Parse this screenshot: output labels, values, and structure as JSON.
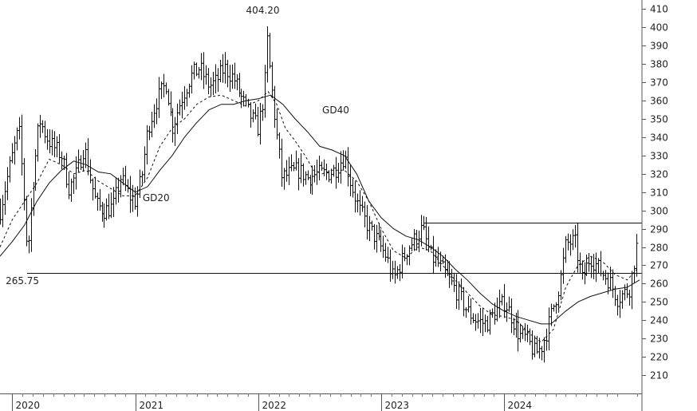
{
  "chart_data": {
    "type": "ohlc-bar",
    "title": "",
    "xlabel": "",
    "ylabel": "",
    "ylim": [
      200,
      415
    ],
    "y_ticks": [
      210,
      220,
      230,
      240,
      250,
      260,
      270,
      280,
      290,
      300,
      310,
      320,
      330,
      340,
      350,
      360,
      370,
      380,
      390,
      400,
      410
    ],
    "x_range": [
      2019.9,
      2025.12
    ],
    "x_ticks": [
      {
        "x": 2020.0,
        "label": "2020"
      },
      {
        "x": 2021.0,
        "label": "2021"
      },
      {
        "x": 2022.0,
        "label": "2022"
      },
      {
        "x": 2023.0,
        "label": "2023"
      },
      {
        "x": 2024.0,
        "label": "2024"
      }
    ],
    "horizontal_lines": [
      {
        "y": 265.75,
        "x_start": 2020.12
      },
      {
        "y": 293.5,
        "x_start": 2023.35
      }
    ],
    "annotations": [
      {
        "text": "404.20",
        "x": 2022.05,
        "y": 404.2
      },
      {
        "text": "265.75",
        "x": 2019.92,
        "y": 265.75
      },
      {
        "text": "GD40",
        "x": 2022.52,
        "y": 353
      },
      {
        "text": "GD20",
        "x": 2021.06,
        "y": 305
      }
    ],
    "price_anchors": [
      [
        2019.9,
        300
      ],
      [
        2019.97,
        322
      ],
      [
        2020.05,
        345
      ],
      [
        2020.09,
        310
      ],
      [
        2020.12,
        275
      ],
      [
        2020.17,
        318
      ],
      [
        2020.22,
        350
      ],
      [
        2020.28,
        340
      ],
      [
        2020.33,
        335
      ],
      [
        2020.4,
        330
      ],
      [
        2020.46,
        312
      ],
      [
        2020.52,
        320
      ],
      [
        2020.58,
        335
      ],
      [
        2020.63,
        318
      ],
      [
        2020.68,
        303
      ],
      [
        2020.75,
        300
      ],
      [
        2020.82,
        302
      ],
      [
        2020.88,
        318
      ],
      [
        2020.95,
        308
      ],
      [
        2021.0,
        305
      ],
      [
        2021.05,
        318
      ],
      [
        2021.1,
        345
      ],
      [
        2021.17,
        360
      ],
      [
        2021.25,
        370
      ],
      [
        2021.3,
        345
      ],
      [
        2021.37,
        360
      ],
      [
        2021.45,
        373
      ],
      [
        2021.52,
        378
      ],
      [
        2021.6,
        368
      ],
      [
        2021.65,
        370
      ],
      [
        2021.72,
        378
      ],
      [
        2021.8,
        372
      ],
      [
        2021.87,
        360
      ],
      [
        2021.95,
        350
      ],
      [
        2022.0,
        345
      ],
      [
        2022.05,
        365
      ],
      [
        2022.07,
        395
      ],
      [
        2022.1,
        372
      ],
      [
        2022.15,
        340
      ],
      [
        2022.19,
        318
      ],
      [
        2022.25,
        320
      ],
      [
        2022.32,
        322
      ],
      [
        2022.4,
        318
      ],
      [
        2022.48,
        320
      ],
      [
        2022.55,
        320
      ],
      [
        2022.62,
        322
      ],
      [
        2022.7,
        330
      ],
      [
        2022.75,
        315
      ],
      [
        2022.82,
        300
      ],
      [
        2022.9,
        290
      ],
      [
        2022.97,
        283
      ],
      [
        2023.04,
        275
      ],
      [
        2023.1,
        262
      ],
      [
        2023.15,
        270
      ],
      [
        2023.22,
        280
      ],
      [
        2023.28,
        285
      ],
      [
        2023.33,
        290
      ],
      [
        2023.4,
        275
      ],
      [
        2023.47,
        270
      ],
      [
        2023.55,
        262
      ],
      [
        2023.62,
        255
      ],
      [
        2023.7,
        245
      ],
      [
        2023.77,
        240
      ],
      [
        2023.85,
        238
      ],
      [
        2023.93,
        245
      ],
      [
        2024.0,
        250
      ],
      [
        2024.05,
        243
      ],
      [
        2024.12,
        232
      ],
      [
        2024.18,
        230
      ],
      [
        2024.25,
        222
      ],
      [
        2024.3,
        225
      ],
      [
        2024.35,
        235
      ],
      [
        2024.4,
        248
      ],
      [
        2024.45,
        260
      ],
      [
        2024.5,
        282
      ],
      [
        2024.57,
        283
      ],
      [
        2024.63,
        262
      ],
      [
        2024.7,
        275
      ],
      [
        2024.77,
        268
      ],
      [
        2024.85,
        262
      ],
      [
        2024.92,
        252
      ],
      [
        2024.98,
        255
      ],
      [
        2025.02,
        258
      ],
      [
        2025.06,
        275
      ],
      [
        2025.09,
        287
      ]
    ],
    "moving_averages": [
      {
        "name": "GD20",
        "style": "dashed",
        "points": [
          [
            2019.9,
            280
          ],
          [
            2020.0,
            295
          ],
          [
            2020.1,
            305
          ],
          [
            2020.2,
            315
          ],
          [
            2020.3,
            328
          ],
          [
            2020.4,
            325
          ],
          [
            2020.5,
            320
          ],
          [
            2020.6,
            322
          ],
          [
            2020.7,
            316
          ],
          [
            2020.8,
            312
          ],
          [
            2020.9,
            308
          ],
          [
            2021.0,
            308
          ],
          [
            2021.1,
            318
          ],
          [
            2021.2,
            335
          ],
          [
            2021.3,
            345
          ],
          [
            2021.4,
            350
          ],
          [
            2021.5,
            358
          ],
          [
            2021.6,
            362
          ],
          [
            2021.7,
            363
          ],
          [
            2021.8,
            360
          ],
          [
            2021.9,
            357
          ],
          [
            2022.0,
            360
          ],
          [
            2022.08,
            365
          ],
          [
            2022.15,
            358
          ],
          [
            2022.22,
            345
          ],
          [
            2022.3,
            338
          ],
          [
            2022.38,
            330
          ],
          [
            2022.45,
            322
          ],
          [
            2022.52,
            320
          ],
          [
            2022.6,
            322
          ],
          [
            2022.7,
            322
          ],
          [
            2022.8,
            316
          ],
          [
            2022.9,
            305
          ],
          [
            2023.0,
            290
          ],
          [
            2023.1,
            278
          ],
          [
            2023.2,
            274
          ],
          [
            2023.3,
            280
          ],
          [
            2023.4,
            278
          ],
          [
            2023.5,
            270
          ],
          [
            2023.6,
            262
          ],
          [
            2023.7,
            255
          ],
          [
            2023.8,
            248
          ],
          [
            2023.9,
            243
          ],
          [
            2024.0,
            242
          ],
          [
            2024.1,
            240
          ],
          [
            2024.2,
            233
          ],
          [
            2024.3,
            228
          ],
          [
            2024.4,
            235
          ],
          [
            2024.5,
            258
          ],
          [
            2024.6,
            270
          ],
          [
            2024.7,
            275
          ],
          [
            2024.8,
            272
          ],
          [
            2024.9,
            265
          ],
          [
            2025.0,
            262
          ],
          [
            2025.08,
            268
          ]
        ]
      },
      {
        "name": "GD40",
        "style": "solid",
        "points": [
          [
            2019.9,
            275
          ],
          [
            2020.0,
            283
          ],
          [
            2020.1,
            292
          ],
          [
            2020.2,
            305
          ],
          [
            2020.3,
            315
          ],
          [
            2020.4,
            322
          ],
          [
            2020.5,
            327
          ],
          [
            2020.6,
            325
          ],
          [
            2020.7,
            321
          ],
          [
            2020.8,
            320
          ],
          [
            2020.9,
            315
          ],
          [
            2021.0,
            310
          ],
          [
            2021.1,
            313
          ],
          [
            2021.2,
            322
          ],
          [
            2021.3,
            330
          ],
          [
            2021.4,
            340
          ],
          [
            2021.5,
            348
          ],
          [
            2021.6,
            355
          ],
          [
            2021.7,
            358
          ],
          [
            2021.8,
            358
          ],
          [
            2021.9,
            360
          ],
          [
            2022.0,
            361
          ],
          [
            2022.1,
            363
          ],
          [
            2022.2,
            358
          ],
          [
            2022.3,
            350
          ],
          [
            2022.4,
            343
          ],
          [
            2022.5,
            335
          ],
          [
            2022.6,
            333
          ],
          [
            2022.7,
            330
          ],
          [
            2022.8,
            320
          ],
          [
            2022.9,
            305
          ],
          [
            2023.0,
            296
          ],
          [
            2023.1,
            290
          ],
          [
            2023.2,
            286
          ],
          [
            2023.3,
            284
          ],
          [
            2023.4,
            280
          ],
          [
            2023.5,
            275
          ],
          [
            2023.6,
            268
          ],
          [
            2023.7,
            262
          ],
          [
            2023.8,
            255
          ],
          [
            2023.9,
            249
          ],
          [
            2024.0,
            245
          ],
          [
            2024.1,
            242
          ],
          [
            2024.2,
            240
          ],
          [
            2024.3,
            238
          ],
          [
            2024.38,
            238
          ],
          [
            2024.5,
            245
          ],
          [
            2024.6,
            250
          ],
          [
            2024.7,
            253
          ],
          [
            2024.8,
            255
          ],
          [
            2024.9,
            257
          ],
          [
            2025.0,
            258
          ],
          [
            2025.1,
            262
          ]
        ]
      }
    ]
  }
}
